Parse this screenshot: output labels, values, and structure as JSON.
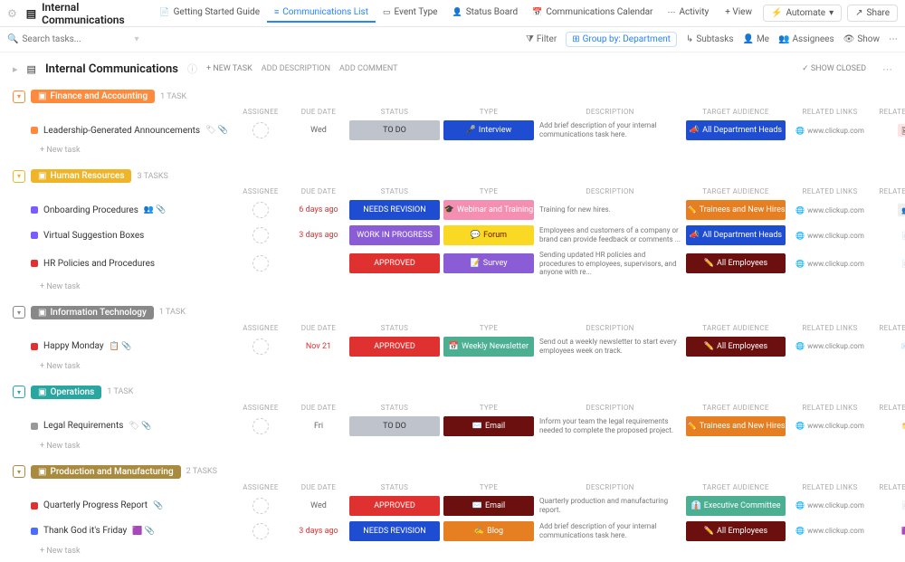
{
  "topbar": {
    "title": "Internal Communications",
    "tabs": [
      {
        "label": "Getting Started Guide",
        "icon": "📄"
      },
      {
        "label": "Communications List",
        "icon": "≡",
        "active": true
      },
      {
        "label": "Event Type",
        "icon": "▭"
      },
      {
        "label": "Status Board",
        "icon": "👤"
      },
      {
        "label": "Communications Calendar",
        "icon": "📅"
      },
      {
        "label": "Activity",
        "icon": "⋯"
      }
    ],
    "add_view": "+ View",
    "automate": "Automate",
    "share": "Share"
  },
  "toolbar2": {
    "search_placeholder": "Search tasks...",
    "filter": "Filter",
    "group_by": "Group by: Department",
    "subtasks": "Subtasks",
    "me": "Me",
    "assignees": "Assignees",
    "show": "Show"
  },
  "header": {
    "title": "Internal Communications",
    "new_task": "+ NEW TASK",
    "add_desc": "ADD DESCRIPTION",
    "add_comment": "ADD COMMENT",
    "show_closed": "✓ SHOW CLOSED"
  },
  "columns": {
    "assignee": "ASSIGNEE",
    "due": "DUE DATE",
    "status": "STATUS",
    "type": "TYPE",
    "desc": "DESCRIPTION",
    "target": "TARGET AUDIENCE",
    "links": "RELATED LINKS",
    "files": "RELATED FILES"
  },
  "link_text": "www.clickup.com",
  "new_task_label": "+ New task",
  "colors": {
    "todo": "#bfc4cc",
    "needs_rev": "#1f4dd1",
    "wip": "#8a5cd6",
    "approved": "#e03131",
    "interview": "#1f4dd1",
    "webinar": "#f48fb1",
    "forum": "#f9d923",
    "survey": "#8a5cd6",
    "newsletter": "#4caf91",
    "email": "#6b0f0f",
    "blog": "#e67e22",
    "all_dept": "#1f4dd1",
    "trainees": "#e67e22",
    "all_emp": "#6b0f0f",
    "exec": "#4caf91",
    "orange": "#ff8a3d",
    "yellow": "#f0b429",
    "grey": "#888",
    "teal": "#2aa6a0",
    "olive": "#a88b3e"
  },
  "groups": [
    {
      "name": "Finance and Accounting",
      "color": "orange",
      "count": "1 TASK",
      "tasks": [
        {
          "sq": "#ff8a3d",
          "name": "Leadership-Generated Announcements",
          "icons": "🏷 📎",
          "due": "Wed",
          "due_red": false,
          "status": {
            "label": "TO DO",
            "key": "todo",
            "text": "#333"
          },
          "type": {
            "label": "Interview",
            "key": "interview",
            "emoji": "🎤"
          },
          "desc": "Add brief description of your internal communications task here.",
          "target": {
            "label": "All Department Heads",
            "key": "all_dept",
            "emoji": "📣"
          },
          "file": "🖼",
          "file_bg": "#ffe2e2"
        }
      ]
    },
    {
      "name": "Human Resources",
      "color": "yellow",
      "count": "3 TASKS",
      "tasks": [
        {
          "sq": "#7a5cff",
          "name": "Onboarding Procedures",
          "icons": "👥 📎",
          "due": "6 days ago",
          "due_red": true,
          "status": {
            "label": "NEEDS REVISION",
            "key": "needs_rev"
          },
          "type": {
            "label": "Webinar and Training",
            "key": "webinar",
            "emoji": "🎓"
          },
          "desc": "Training for new hires.",
          "target": {
            "label": "Trainees and New Hires",
            "key": "trainees",
            "emoji": "✏️"
          },
          "file": "👥",
          "file_bg": "#eee"
        },
        {
          "sq": "#7a5cff",
          "name": "Virtual Suggestion Boxes",
          "icons": "",
          "due": "3 days ago",
          "due_red": true,
          "status": {
            "label": "WORK IN PROGRESS",
            "key": "wip"
          },
          "type": {
            "label": "Forum",
            "key": "forum",
            "emoji": "💬",
            "text": "#6b0f0f"
          },
          "desc": "Employees and customers of a company or brand can provide feedback or comments ...",
          "target": {
            "label": "All Department Heads",
            "key": "all_dept",
            "emoji": "📣"
          },
          "file": "📄",
          "file_bg": "transparent"
        },
        {
          "sq": "#e03131",
          "name": "HR Policies and Procedures",
          "icons": "",
          "due": "",
          "due_red": false,
          "status": {
            "label": "APPROVED",
            "key": "approved"
          },
          "type": {
            "label": "Survey",
            "key": "survey",
            "emoji": "📝"
          },
          "desc": "Sending updated HR policies and procedures to employees, supervisors, and anyone with re...",
          "target": {
            "label": "All Employees",
            "key": "all_emp",
            "emoji": "✏️"
          },
          "file": "📄",
          "file_bg": "transparent"
        }
      ]
    },
    {
      "name": "Information Technology",
      "color": "grey",
      "count": "1 TASK",
      "tasks": [
        {
          "sq": "#e03131",
          "name": "Happy Monday",
          "icons": "📋 📎",
          "due": "Nov 21",
          "due_red": true,
          "status": {
            "label": "APPROVED",
            "key": "approved"
          },
          "type": {
            "label": "Weekly Newsletter",
            "key": "newsletter",
            "emoji": "📅"
          },
          "desc": "Send out a weekly newsletter to start every employees week on track.",
          "target": {
            "label": "All Employees",
            "key": "all_emp",
            "emoji": "✏️"
          },
          "file": "📧",
          "file_bg": "transparent"
        }
      ]
    },
    {
      "name": "Operations",
      "color": "teal",
      "count": "1 TASK",
      "tasks": [
        {
          "sq": "#999",
          "name": "Legal Requirements",
          "icons": "🏷 📎",
          "due": "Fri",
          "due_red": false,
          "status": {
            "label": "TO DO",
            "key": "todo",
            "text": "#333"
          },
          "type": {
            "label": "Email",
            "key": "email",
            "emoji": "✉️"
          },
          "desc": "Inform your team the legal requirements needed to complete the proposed project.",
          "target": {
            "label": "Trainees and New Hires",
            "key": "trainees",
            "emoji": "✏️"
          },
          "file": "📁",
          "file_bg": "transparent"
        }
      ]
    },
    {
      "name": "Production and Manufacturing",
      "color": "olive",
      "count": "2 TASKS",
      "tasks": [
        {
          "sq": "#e03131",
          "name": "Quarterly Progress Report",
          "icons": "📎",
          "due": "Wed",
          "due_red": false,
          "status": {
            "label": "APPROVED",
            "key": "approved"
          },
          "type": {
            "label": "Email",
            "key": "email",
            "emoji": "✉️"
          },
          "desc": "Quarterly production and manufacturing report.",
          "target": {
            "label": "Executive Committee",
            "key": "exec",
            "emoji": "👔"
          },
          "file": "📄",
          "file_bg": "transparent"
        },
        {
          "sq": "#4a6cff",
          "name": "Thank God it's Friday",
          "icons": "🟪 📎",
          "due": "3 days ago",
          "due_red": true,
          "status": {
            "label": "NEEDS REVISION",
            "key": "needs_rev"
          },
          "type": {
            "label": "Blog",
            "key": "blog",
            "emoji": "✍️"
          },
          "desc": "Add brief description of your internal communications task here.",
          "target": {
            "label": "All Employees",
            "key": "all_emp",
            "emoji": "✏️"
          },
          "file": "🟪",
          "file_bg": "transparent"
        }
      ]
    }
  ]
}
